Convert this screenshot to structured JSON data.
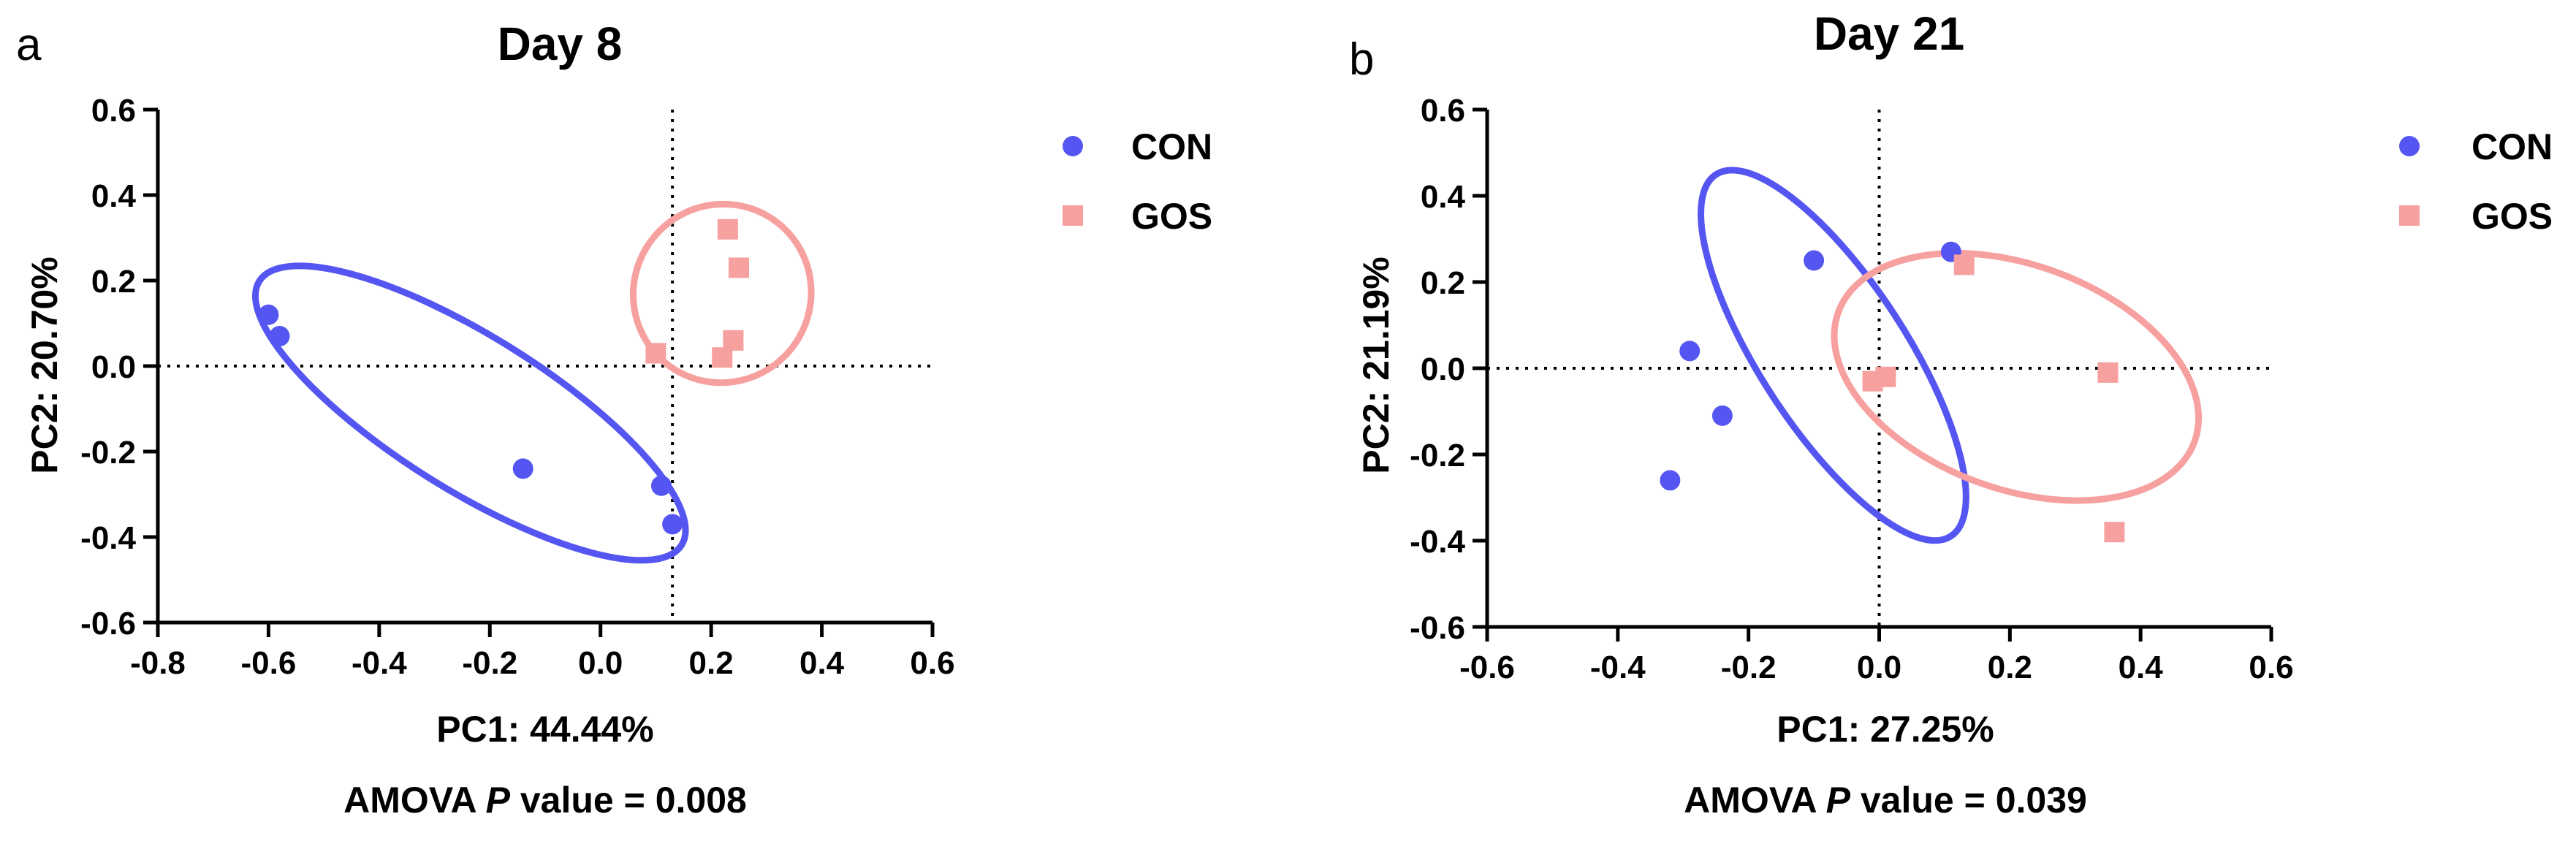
{
  "chart_data": [
    {
      "type": "scatter",
      "panel_label": "a",
      "title": "Day 8",
      "xlabel": "PC1: 44.44%",
      "ylabel": "PC2: 20.70%",
      "footer": {
        "prefix": "AMOVA ",
        "p": "P",
        "suffix": " value = 0.008"
      },
      "xlim": [
        -0.8,
        0.6
      ],
      "ylim": [
        -0.6,
        0.6
      ],
      "xticks": [
        -0.8,
        -0.6,
        -0.4,
        -0.2,
        0.0,
        0.2,
        0.4,
        0.6
      ],
      "yticks": [
        -0.6,
        -0.4,
        -0.2,
        0.0,
        0.2,
        0.4,
        0.6
      ],
      "xtick_labels": [
        "-0.8",
        "-0.6",
        "-0.4",
        "-0.2",
        "0.0",
        "0.2",
        "0.4",
        "0.6"
      ],
      "ytick_labels": [
        "-0.6",
        "-0.4",
        "-0.2",
        "0.0",
        "0.2",
        "0.4",
        "0.6"
      ],
      "reference_lines": {
        "x": 0.13,
        "y": 0.0
      },
      "legend": {
        "position": "right",
        "entries": [
          "CON",
          "GOS"
        ]
      },
      "series": [
        {
          "name": "CON",
          "marker": "circle",
          "color": "#5555f2",
          "points": [
            [
              -0.6,
              0.12
            ],
            [
              -0.58,
              0.07
            ],
            [
              -0.14,
              -0.24
            ],
            [
              0.11,
              -0.28
            ],
            [
              0.13,
              -0.37
            ]
          ],
          "ellipse": {
            "cx": -0.235,
            "cy": -0.11,
            "rx": 0.45,
            "ry": 0.18,
            "angle_deg": 32
          }
        },
        {
          "name": "GOS",
          "marker": "square",
          "color": "#f7a0a0",
          "points": [
            [
              0.1,
              0.03
            ],
            [
              0.22,
              0.02
            ],
            [
              0.24,
              0.06
            ],
            [
              0.23,
              0.32
            ],
            [
              0.25,
              0.23
            ]
          ],
          "ellipse": {
            "cx": 0.22,
            "cy": 0.17,
            "rx": 0.16,
            "ry": 0.21,
            "angle_deg": 38
          }
        }
      ]
    },
    {
      "type": "scatter",
      "panel_label": "b",
      "title": "Day 21",
      "xlabel": "PC1: 27.25%",
      "ylabel": "PC2: 21.19%",
      "footer": {
        "prefix": "AMOVA ",
        "p": "P",
        "suffix": " value = 0.039"
      },
      "xlim": [
        -0.6,
        0.6
      ],
      "ylim": [
        -0.6,
        0.6
      ],
      "xticks": [
        -0.6,
        -0.4,
        -0.2,
        0.0,
        0.2,
        0.4,
        0.6
      ],
      "yticks": [
        -0.6,
        -0.4,
        -0.2,
        0.0,
        0.2,
        0.4,
        0.6
      ],
      "xtick_labels": [
        "-0.6",
        "-0.4",
        "-0.2",
        "0.0",
        "0.2",
        "0.4",
        "0.6"
      ],
      "ytick_labels": [
        "-0.6",
        "-0.4",
        "-0.2",
        "0.0",
        "0.2",
        "0.4",
        "0.6"
      ],
      "reference_lines": {
        "x": 0.0,
        "y": 0.0
      },
      "legend": {
        "position": "right",
        "entries": [
          "CON",
          "GOS"
        ]
      },
      "series": [
        {
          "name": "CON",
          "marker": "circle",
          "color": "#5555f2",
          "points": [
            [
              -0.29,
              0.04
            ],
            [
              -0.1,
              0.25
            ],
            [
              -0.24,
              -0.11
            ],
            [
              -0.32,
              -0.26
            ],
            [
              0.11,
              0.27
            ]
          ],
          "ellipse": {
            "cx": -0.07,
            "cy": 0.03,
            "rx": 0.33,
            "ry": 0.17,
            "angle_deg": 57
          }
        },
        {
          "name": "GOS",
          "marker": "square",
          "color": "#f7a0a0",
          "points": [
            [
              -0.01,
              -0.03
            ],
            [
              0.01,
              -0.02
            ],
            [
              0.13,
              0.24
            ],
            [
              0.35,
              -0.01
            ],
            [
              0.36,
              -0.38
            ]
          ],
          "ellipse": {
            "cx": 0.21,
            "cy": -0.02,
            "rx": 0.29,
            "ry": 0.26,
            "angle_deg": 20
          }
        }
      ]
    }
  ]
}
